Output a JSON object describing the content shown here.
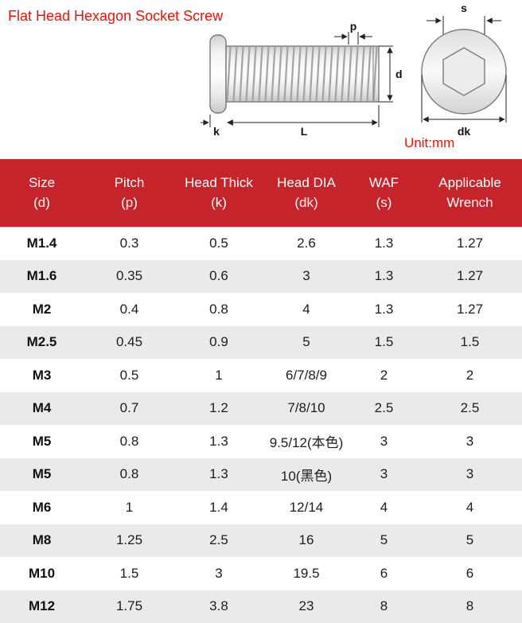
{
  "title": "Flat Head Hexagon Socket Screw",
  "unit_label": "Unit:mm",
  "colors": {
    "accent_red_title": "#ea1408",
    "table_header_red": "#c5242b",
    "row_alt_gray": "#eaeaea"
  },
  "diagram": {
    "side": {
      "p": "p",
      "d": "d",
      "k": "k",
      "L": "L"
    },
    "end": {
      "s": "s",
      "dk": "dk"
    }
  },
  "table": {
    "headers": [
      [
        "Size",
        "(d)"
      ],
      [
        "Pitch",
        "(p)"
      ],
      [
        "Head Thick",
        "(k)"
      ],
      [
        "Head DIA",
        "(dk)"
      ],
      [
        "WAF",
        "(s)"
      ],
      [
        "Applicable",
        "Wrench"
      ]
    ],
    "rows": [
      [
        "M1.4",
        "0.3",
        "0.5",
        "2.6",
        "1.3",
        "1.27"
      ],
      [
        "M1.6",
        "0.35",
        "0.6",
        "3",
        "1.3",
        "1.27"
      ],
      [
        "M2",
        "0.4",
        "0.8",
        "4",
        "1.3",
        "1.27"
      ],
      [
        "M2.5",
        "0.45",
        "0.9",
        "5",
        "1.5",
        "1.5"
      ],
      [
        "M3",
        "0.5",
        "1",
        "6/7/8/9",
        "2",
        "2"
      ],
      [
        "M4",
        "0.7",
        "1.2",
        "7/8/10",
        "2.5",
        "2.5"
      ],
      [
        "M5",
        "0.8",
        "1.3",
        "9.5/12(本色)",
        "3",
        "3"
      ],
      [
        "M5",
        "0.8",
        "1.3",
        "10(黑色)",
        "3",
        "3"
      ],
      [
        "M6",
        "1",
        "1.4",
        "12/14",
        "4",
        "4"
      ],
      [
        "M8",
        "1.25",
        "2.5",
        "16",
        "5",
        "5"
      ],
      [
        "M10",
        "1.5",
        "3",
        "19.5",
        "6",
        "6"
      ],
      [
        "M12",
        "1.75",
        "3.8",
        "23",
        "8",
        "8"
      ]
    ]
  }
}
